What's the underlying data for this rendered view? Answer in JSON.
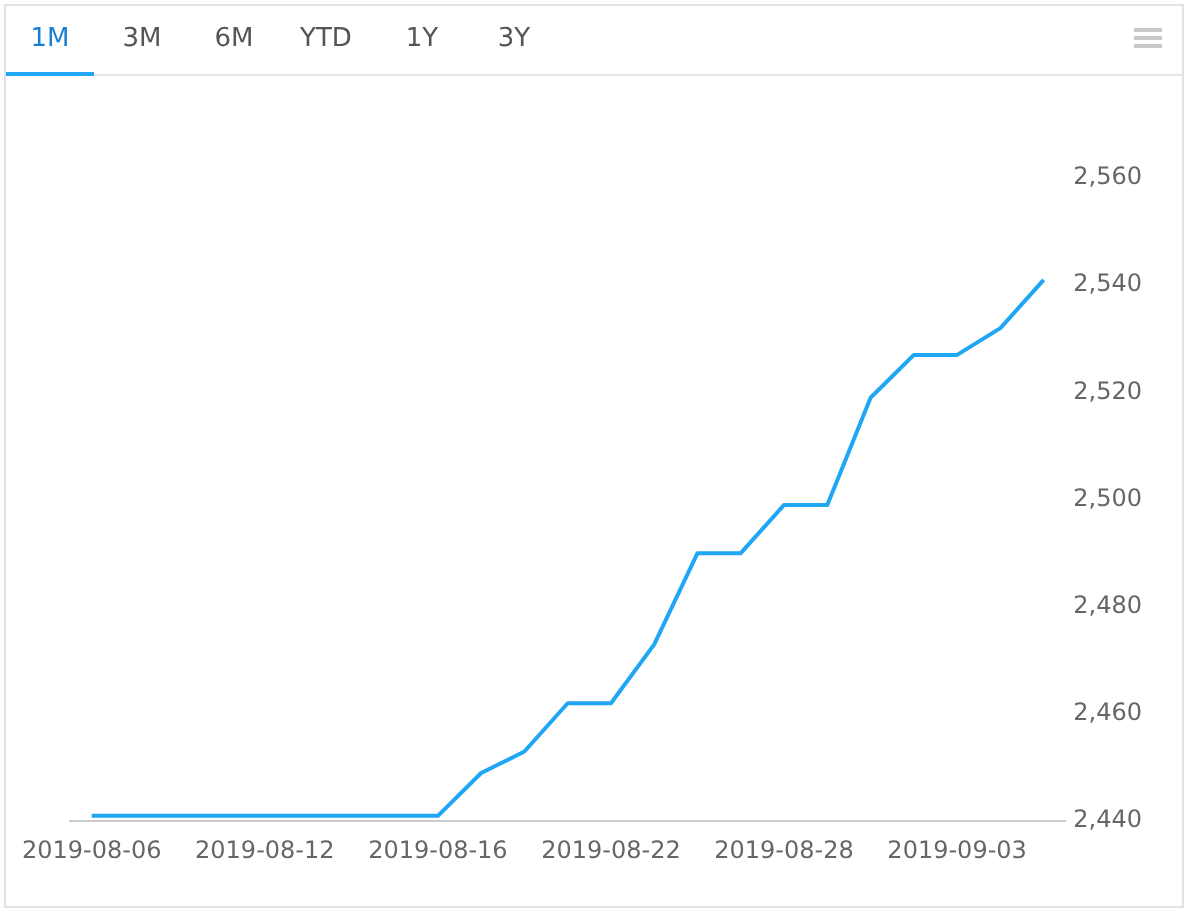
{
  "chart_data": {
    "type": "line",
    "annotations": [
      "1M",
      "3M",
      "6M",
      "YTD",
      "1Y",
      "3Y"
    ],
    "categories": [
      "2019-08-06",
      null,
      null,
      null,
      "2019-08-12",
      null,
      null,
      null,
      "2019-08-16",
      null,
      null,
      null,
      "2019-08-22",
      null,
      null,
      null,
      "2019-08-28",
      null,
      null,
      null,
      "2019-09-03",
      null,
      null
    ],
    "series": [
      {
        "color": "#1fa7f5",
        "values": [
          2441,
          2441,
          2441,
          2441,
          2441,
          2441,
          2441,
          2441,
          2441,
          2449,
          2453,
          2462,
          2462,
          2473,
          2490,
          2490,
          2499,
          2499,
          2519,
          2527,
          2527,
          2532,
          2541
        ]
      }
    ],
    "ylim": [
      2440,
      2560
    ],
    "yticks": [
      {
        "value": 2440,
        "label": "2,440"
      },
      {
        "value": 2460,
        "label": "2,460"
      },
      {
        "value": 2480,
        "label": "2,480"
      },
      {
        "value": 2500,
        "label": "2,500"
      },
      {
        "value": 2520,
        "label": "2,520"
      },
      {
        "value": 2540,
        "label": "2,540"
      },
      {
        "value": 2560,
        "label": "2,560"
      }
    ],
    "grid": false,
    "legend": false,
    "marker": "none",
    "line_style": "solid"
  }
}
